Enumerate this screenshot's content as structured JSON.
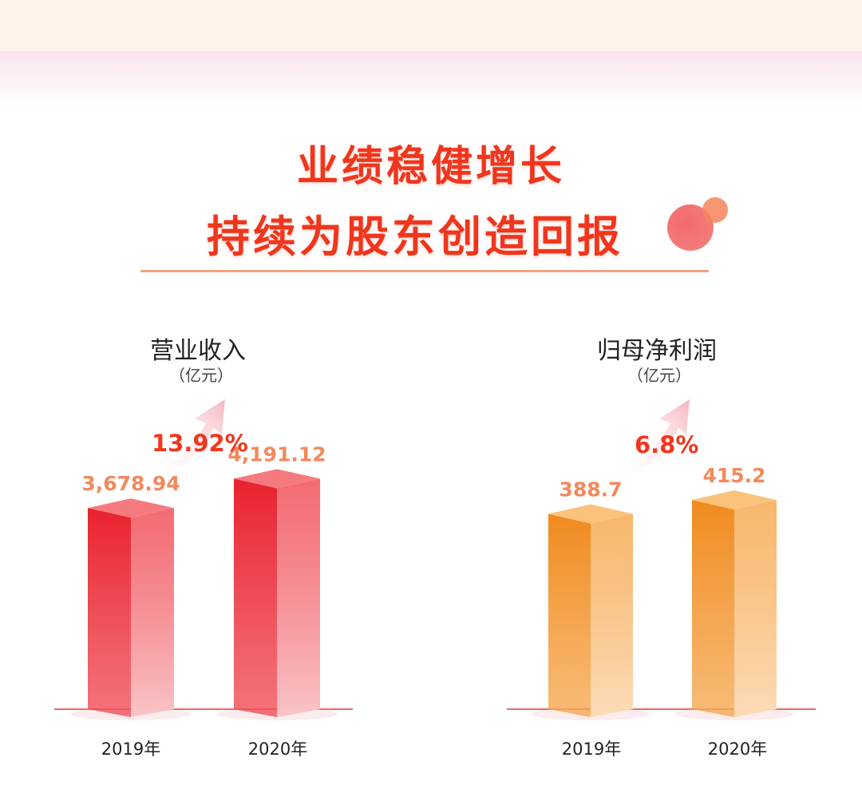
{
  "headline": {
    "line1": "业绩稳健增长",
    "line2": "持续为股东创造回报"
  },
  "colors": {
    "headline": "#f0361d",
    "revenue_bar": "#e8323a",
    "profit_bar": "#f0912a",
    "value_label": "#f3895c",
    "baseline": "#e86a6a"
  },
  "chart_data": [
    {
      "type": "bar",
      "title": "营业收入",
      "unit": "（亿元）",
      "categories": [
        "2019年",
        "2020年"
      ],
      "values": [
        3678.94,
        4191.12
      ],
      "value_labels": [
        "3,678.94",
        "4,191.12"
      ],
      "growth_label": "13.92%",
      "ylim": [
        0,
        4600
      ]
    },
    {
      "type": "bar",
      "title": "归母净利润",
      "unit": "（亿元）",
      "categories": [
        "2019年",
        "2020年"
      ],
      "values": [
        388.7,
        415.2
      ],
      "value_labels": [
        "388.7",
        "415.2"
      ],
      "growth_label": "6.8%",
      "ylim": [
        0,
        500
      ]
    }
  ]
}
